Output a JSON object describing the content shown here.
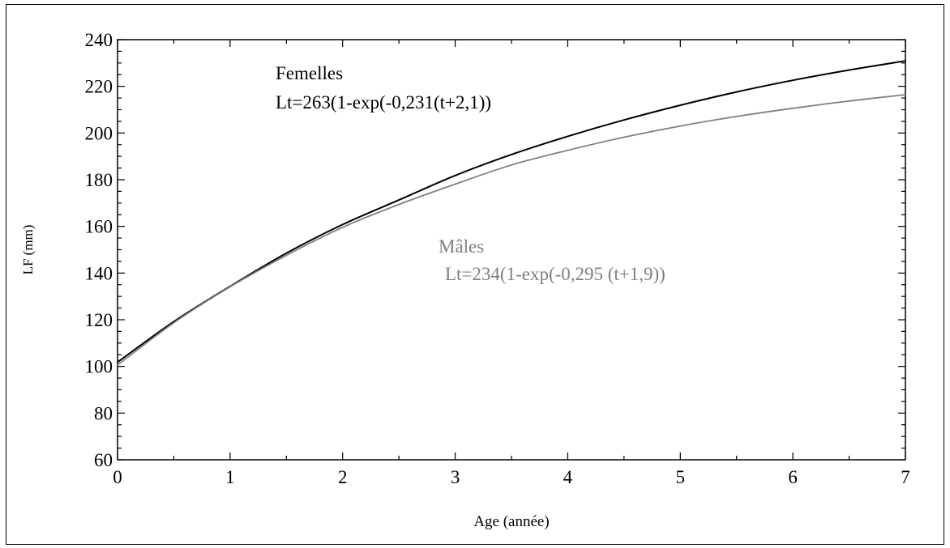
{
  "chart_data": {
    "type": "line",
    "title": "",
    "xlabel": "Age (année)",
    "ylabel": "LF (mm)",
    "xlim": [
      0,
      7
    ],
    "ylim": [
      60,
      240
    ],
    "xticks": [
      0,
      1,
      2,
      3,
      4,
      5,
      6,
      7
    ],
    "yticks": [
      60,
      80,
      100,
      120,
      140,
      160,
      180,
      200,
      220,
      240
    ],
    "grid": false,
    "x": [
      0,
      0.5,
      1,
      1.5,
      2,
      2.5,
      3,
      3.5,
      4,
      4.5,
      5,
      5.5,
      6,
      6.5,
      7
    ],
    "series": [
      {
        "name": "Femelles",
        "equation": "Lt=263(1-exp(-0,231(t+2,1))",
        "color": "#000000",
        "values": [
          101.8,
          119.2,
          134.3,
          148.5,
          160.8,
          171.3,
          181.8,
          190.8,
          198.6,
          205.6,
          211.9,
          217.6,
          222.6,
          227.0,
          230.9
        ]
      },
      {
        "name": "Mâles",
        "equation": "Lt=234(1-exp(-0,295 (t+1,9))",
        "color": "#808080",
        "values": [
          100.6,
          118.7,
          134.1,
          147.6,
          159.6,
          169.4,
          178.1,
          186.3,
          192.6,
          198.2,
          203.0,
          207.1,
          210.6,
          213.7,
          216.4
        ]
      }
    ]
  }
}
